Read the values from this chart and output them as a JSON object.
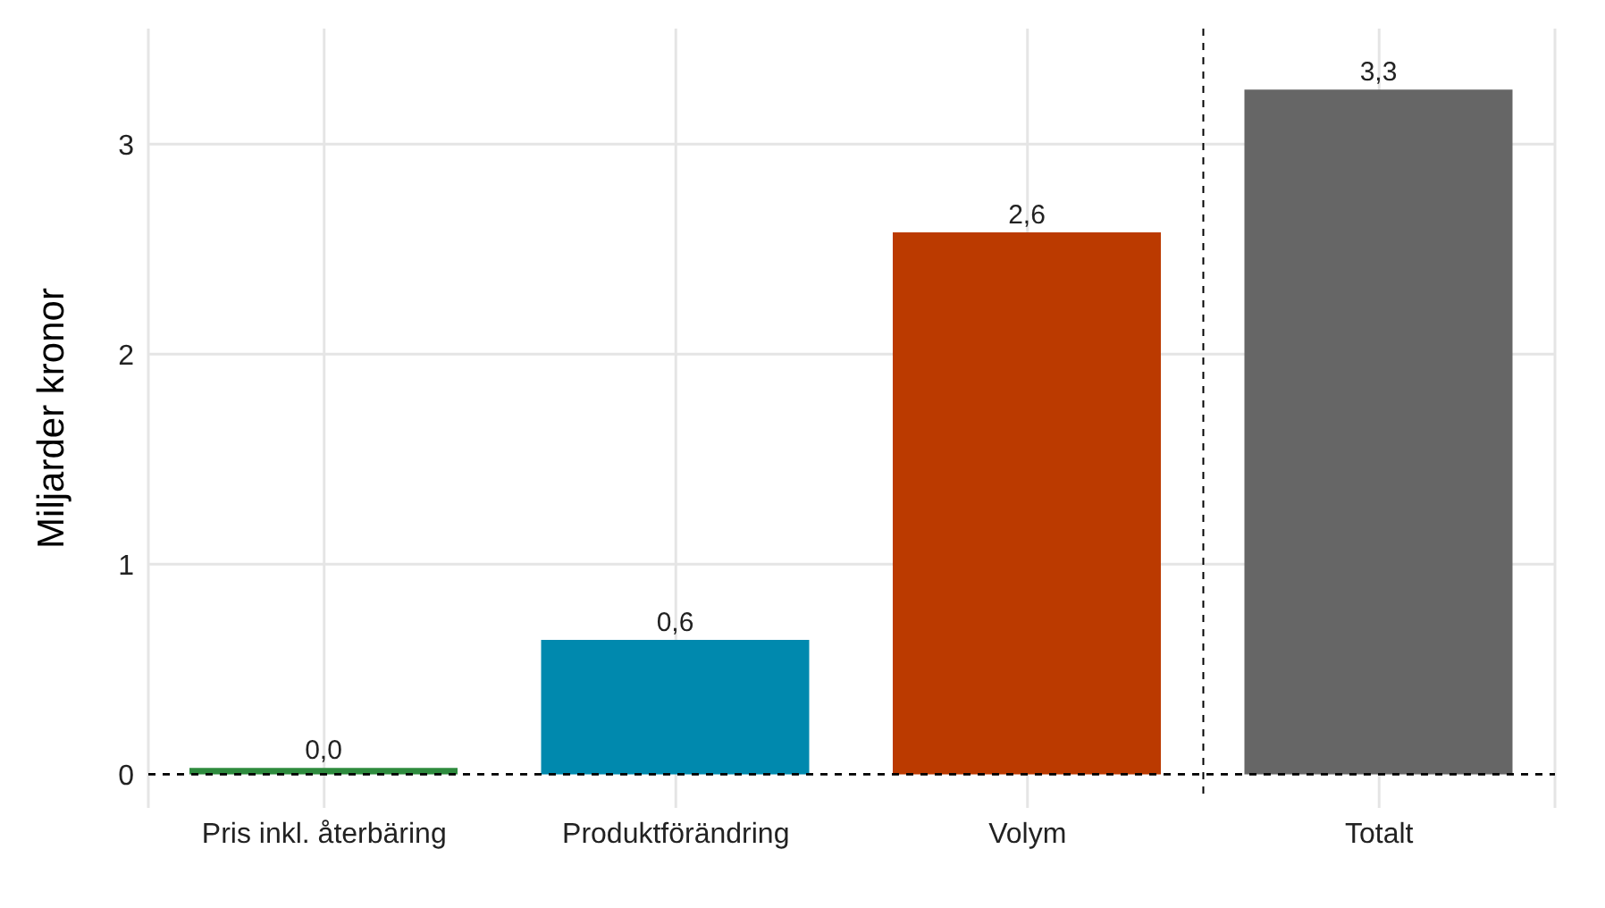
{
  "chart_data": {
    "type": "bar",
    "ylabel": "Miljarder kronor",
    "categories": [
      "Pris inkl. återbäring",
      "Produktförändring",
      "Volym",
      "Totalt"
    ],
    "values": [
      0.03,
      0.64,
      2.58,
      3.26
    ],
    "colors": [
      "#2e8b3e",
      "#0089ae",
      "#bb3a00",
      "#666666"
    ],
    "value_labels": [
      "0,0",
      "0,6",
      "2,6",
      "3,3"
    ],
    "ylim": [
      -0.16,
      3.55
    ],
    "yticks": [
      0,
      1,
      2,
      3
    ],
    "grid": true,
    "ref_lines": [
      {
        "axis": "y",
        "value": 0,
        "line_style": "dashed",
        "color": "#000000"
      }
    ]
  }
}
